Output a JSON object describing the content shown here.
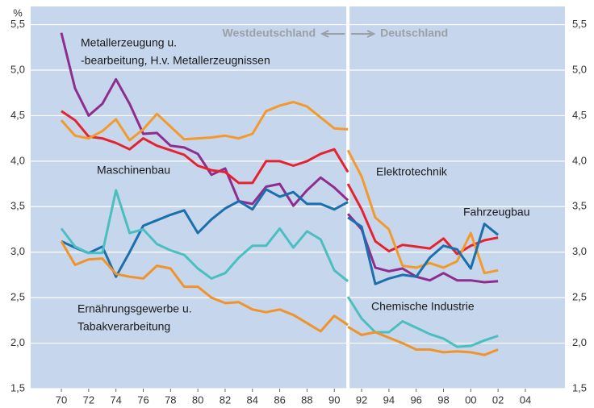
{
  "chart_data": {
    "type": "line",
    "unit": "%",
    "header": {
      "left": "Westdeutschland",
      "right": "Deutschland"
    },
    "divider": 1991,
    "x": [
      1970,
      1971,
      1972,
      1973,
      1974,
      1975,
      1976,
      1977,
      1978,
      1979,
      1980,
      1981,
      1982,
      1983,
      1984,
      1985,
      1986,
      1987,
      1988,
      1989,
      1990,
      1991,
      null,
      1991,
      1992,
      1993,
      1994,
      1995,
      1996,
      1997,
      1998,
      1999,
      2000,
      2001,
      2002
    ],
    "xlim": [
      1967.75,
      2006.9
    ],
    "xticks": [
      {
        "value": 1970,
        "label": "70"
      },
      {
        "value": 1972,
        "label": "72"
      },
      {
        "value": 1974,
        "label": "74"
      },
      {
        "value": 1976,
        "label": "76"
      },
      {
        "value": 1978,
        "label": "78"
      },
      {
        "value": 1980,
        "label": "80"
      },
      {
        "value": 1982,
        "label": "82"
      },
      {
        "value": 1984,
        "label": "84"
      },
      {
        "value": 1986,
        "label": "86"
      },
      {
        "value": 1988,
        "label": "88"
      },
      {
        "value": 1990,
        "label": "90"
      },
      {
        "value": 1992,
        "label": "92"
      },
      {
        "value": 1994,
        "label": "94"
      },
      {
        "value": 1996,
        "label": "96"
      },
      {
        "value": 1998,
        "label": "98"
      },
      {
        "value": 2000,
        "label": "00"
      },
      {
        "value": 2002,
        "label": "02"
      },
      {
        "value": 2004,
        "label": "04"
      }
    ],
    "ylim": [
      1.5,
      5.7
    ],
    "yticks": [
      {
        "value": 1.5,
        "label": "1,5"
      },
      {
        "value": 2.0,
        "label": "2,0"
      },
      {
        "value": 2.5,
        "label": "2,5"
      },
      {
        "value": 3.0,
        "label": "3,0"
      },
      {
        "value": 3.5,
        "label": "3,5"
      },
      {
        "value": 4.0,
        "label": "4,0"
      },
      {
        "value": 4.5,
        "label": "4,5"
      },
      {
        "value": 5.0,
        "label": "5,0"
      },
      {
        "value": 5.5,
        "label": "5,5"
      }
    ],
    "grid": true,
    "series": [
      {
        "label_lines": [
          "Metallerzeugung u.",
          "-bearbeitung, H.v. Metallerzeugnissen"
        ],
        "color": "#8e2d8e",
        "values": [
          5.41,
          4.8,
          4.5,
          4.63,
          4.9,
          4.63,
          4.3,
          4.31,
          4.17,
          4.15,
          4.08,
          3.85,
          3.92,
          3.56,
          3.53,
          3.72,
          3.75,
          3.51,
          3.68,
          3.82,
          3.71,
          3.57,
          null,
          3.42,
          3.25,
          2.83,
          2.79,
          2.82,
          2.73,
          2.69,
          2.77,
          2.69,
          2.69,
          2.67,
          2.68
        ]
      },
      {
        "label_lines": [
          "Maschinenbau"
        ],
        "color": "#e52330",
        "values": [
          4.55,
          4.45,
          4.27,
          4.25,
          4.2,
          4.13,
          4.25,
          4.17,
          4.12,
          4.07,
          3.95,
          3.9,
          3.88,
          3.76,
          3.76,
          4.0,
          4.0,
          3.95,
          4.0,
          4.08,
          4.13,
          3.88,
          null,
          3.75,
          3.47,
          3.12,
          3.01,
          3.08,
          3.06,
          3.04,
          3.15,
          2.98,
          3.07,
          3.13,
          3.16
        ]
      },
      {
        "label_lines": [
          "Elektrotechnik"
        ],
        "color": "#f39a2b",
        "values": [
          4.45,
          4.28,
          4.25,
          4.33,
          4.46,
          4.23,
          4.35,
          4.52,
          4.38,
          4.24,
          4.25,
          4.26,
          4.28,
          4.25,
          4.3,
          4.55,
          4.61,
          4.65,
          4.6,
          4.48,
          4.36,
          4.35,
          null,
          4.12,
          3.83,
          3.38,
          3.25,
          2.85,
          2.83,
          2.88,
          2.83,
          2.9,
          3.21,
          2.77,
          2.8
        ]
      },
      {
        "label_lines": [
          "Fahrzeugbau"
        ],
        "color": "#1a6fad",
        "values": [
          3.12,
          3.05,
          2.99,
          3.06,
          2.73,
          3.0,
          3.29,
          3.35,
          3.41,
          3.46,
          3.21,
          3.36,
          3.48,
          3.56,
          3.47,
          3.69,
          3.61,
          3.66,
          3.53,
          3.53,
          3.47,
          3.55,
          null,
          3.38,
          3.28,
          2.65,
          2.71,
          2.75,
          2.73,
          2.94,
          3.07,
          3.03,
          2.82,
          3.31,
          3.19
        ]
      },
      {
        "label_lines": [
          "Chemische Industrie"
        ],
        "color": "#4bbfbf",
        "values": [
          3.26,
          3.06,
          2.99,
          2.99,
          3.68,
          3.21,
          3.25,
          3.09,
          3.02,
          2.97,
          2.82,
          2.71,
          2.77,
          2.94,
          3.07,
          3.07,
          3.26,
          3.05,
          3.23,
          3.14,
          2.8,
          2.68,
          null,
          2.51,
          2.27,
          2.12,
          2.12,
          2.24,
          2.17,
          2.1,
          2.05,
          1.96,
          1.97,
          2.03,
          2.08
        ]
      },
      {
        "label_lines": [
          "Ernährungsgewerbe u.",
          "Tabakverarbeitung"
        ],
        "color": "#f0932a",
        "values": [
          3.12,
          2.86,
          2.92,
          2.93,
          2.76,
          2.73,
          2.71,
          2.85,
          2.82,
          2.62,
          2.62,
          2.5,
          2.44,
          2.45,
          2.37,
          2.34,
          2.37,
          2.31,
          2.22,
          2.13,
          2.3,
          2.2,
          null,
          2.18,
          2.09,
          2.12,
          2.06,
          2.0,
          1.93,
          1.93,
          1.9,
          1.91,
          1.9,
          1.87,
          1.93
        ]
      }
    ]
  }
}
